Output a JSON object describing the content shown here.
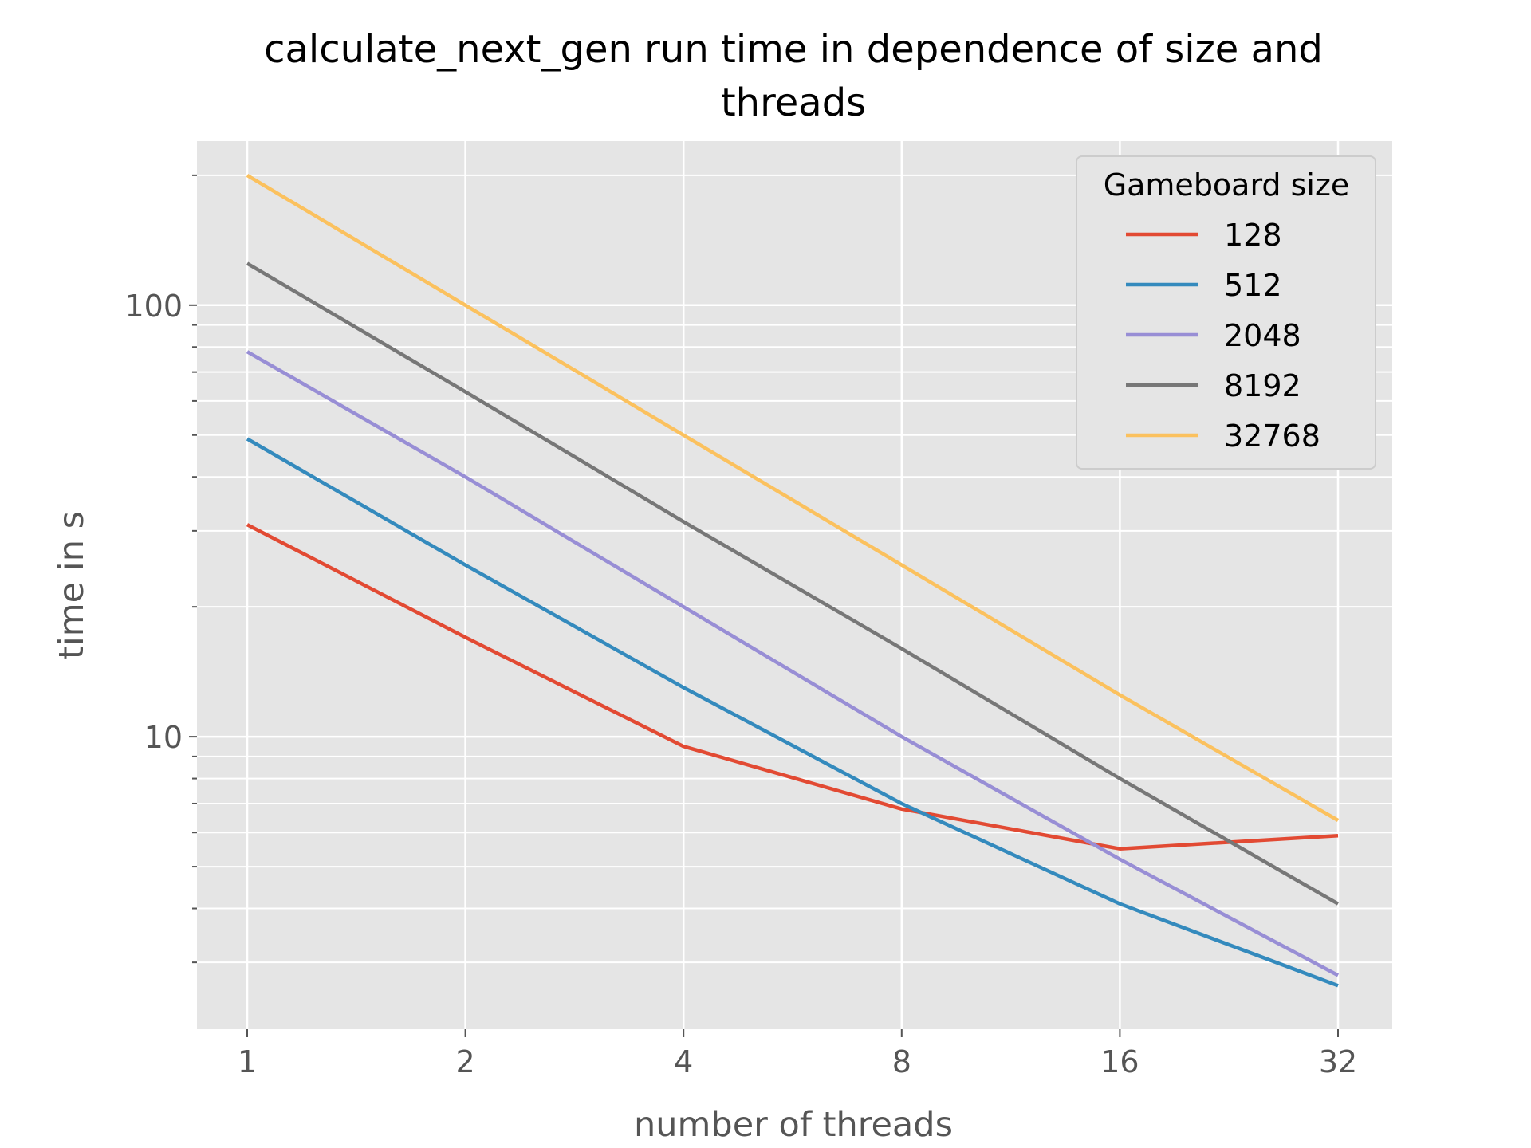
{
  "chart_data": {
    "type": "line",
    "title": "calculate_next_gen run time in dependence of size and threads",
    "title_lines": [
      "calculate_next_gen run time in dependence of size and",
      "threads"
    ],
    "xlabel": "number of threads",
    "ylabel": "time in s",
    "x": [
      1,
      2,
      4,
      8,
      16,
      32
    ],
    "x_tick_labels": [
      "1",
      "2",
      "4",
      "8",
      "16",
      "32"
    ],
    "x_scale": "log2",
    "y_scale": "log10",
    "y_tick_labels": [
      "10",
      "100"
    ],
    "ylim": [
      2.1,
      240
    ],
    "grid": true,
    "legend": {
      "title": "Gameboard size",
      "placement": "top-right"
    },
    "series": [
      {
        "name": "128",
        "color": "#E24A33",
        "values": [
          31,
          17,
          9.5,
          6.8,
          5.5,
          5.9
        ]
      },
      {
        "name": "512",
        "color": "#348ABD",
        "values": [
          49,
          25,
          13,
          7.0,
          4.1,
          2.65
        ]
      },
      {
        "name": "2048",
        "color": "#988ED5",
        "values": [
          78,
          40,
          20,
          10,
          5.2,
          2.8
        ]
      },
      {
        "name": "8192",
        "color": "#777777",
        "values": [
          125,
          63,
          31.5,
          16,
          8.0,
          4.1
        ]
      },
      {
        "name": "32768",
        "color": "#FBC15E",
        "values": [
          200,
          100,
          50,
          25,
          12.5,
          6.4
        ]
      }
    ]
  }
}
